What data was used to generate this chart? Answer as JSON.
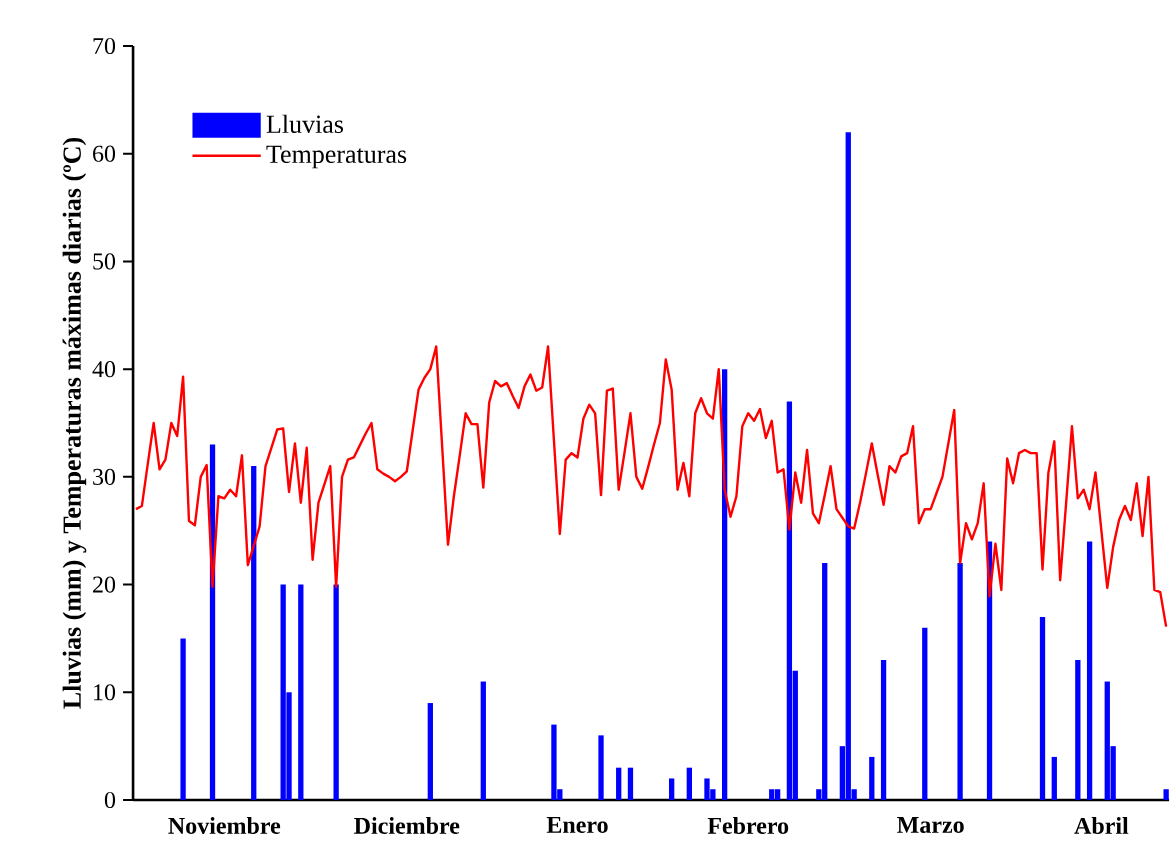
{
  "chart_data": {
    "type": "bar",
    "ylabel": "Lluvias (mm)  y Temperaturas máximas diarias (ºC)",
    "ylim": [
      0,
      70
    ],
    "yticks": [
      0,
      10,
      20,
      30,
      40,
      50,
      60,
      70
    ],
    "categories": [
      null,
      null,
      null,
      null,
      null,
      null,
      null,
      null,
      null,
      null,
      null,
      null,
      null,
      null,
      null,
      "Noviembre",
      null,
      null,
      null,
      null,
      null,
      null,
      null,
      null,
      null,
      null,
      null,
      null,
      null,
      null,
      null,
      null,
      null,
      null,
      null,
      null,
      null,
      null,
      null,
      null,
      null,
      null,
      null,
      null,
      null,
      null,
      "Diciembre",
      null,
      null,
      null,
      null,
      null,
      null,
      null,
      null,
      null,
      null,
      null,
      null,
      null,
      null,
      null,
      null,
      null,
      null,
      null,
      null,
      null,
      null,
      null,
      null,
      null,
      null,
      null,
      null,
      "Enero",
      null,
      null,
      null,
      null,
      null,
      null,
      null,
      null,
      null,
      null,
      null,
      null,
      null,
      null,
      null,
      null,
      null,
      null,
      null,
      null,
      null,
      null,
      null,
      null,
      null,
      null,
      null,
      null,
      "Febrero",
      null,
      null,
      null,
      null,
      null,
      null,
      null,
      null,
      null,
      null,
      null,
      null,
      null,
      null,
      null,
      null,
      null,
      null,
      null,
      null,
      null,
      null,
      null,
      null,
      null,
      null,
      null,
      null,
      null,
      null,
      "Marzo",
      null,
      null,
      null,
      null,
      null,
      null,
      null,
      null,
      null,
      null,
      null,
      null,
      null,
      null,
      null,
      null,
      null,
      null,
      null,
      null,
      null,
      null,
      null,
      null,
      null,
      null,
      null,
      null,
      "Abril",
      null,
      null,
      null,
      null,
      null,
      null,
      null,
      null,
      null,
      null,
      null
    ],
    "legend": "top left",
    "series": [
      {
        "name": "Lluvias",
        "color": "#0000ff",
        "values": [
          null,
          null,
          null,
          null,
          null,
          null,
          null,
          null,
          15,
          null,
          null,
          null,
          null,
          33,
          null,
          null,
          null,
          null,
          null,
          null,
          31,
          null,
          null,
          null,
          null,
          20,
          10,
          null,
          20,
          null,
          null,
          null,
          null,
          null,
          20,
          null,
          null,
          null,
          null,
          null,
          null,
          null,
          null,
          null,
          null,
          null,
          null,
          null,
          null,
          null,
          9,
          null,
          null,
          null,
          null,
          null,
          null,
          null,
          null,
          11,
          null,
          null,
          null,
          null,
          null,
          null,
          null,
          null,
          null,
          null,
          null,
          7,
          1,
          null,
          null,
          null,
          null,
          null,
          null,
          6,
          null,
          null,
          3,
          null,
          3,
          null,
          null,
          null,
          null,
          null,
          null,
          2,
          null,
          null,
          3,
          null,
          null,
          2,
          1,
          null,
          40,
          null,
          null,
          null,
          null,
          null,
          null,
          null,
          1,
          1,
          null,
          37,
          12,
          null,
          null,
          null,
          1,
          22,
          null,
          null,
          5,
          62,
          1,
          null,
          null,
          4,
          null,
          13,
          null,
          null,
          null,
          null,
          null,
          null,
          16,
          null,
          null,
          null,
          null,
          null,
          22,
          null,
          null,
          null,
          null,
          24,
          null,
          null,
          null,
          null,
          null,
          null,
          null,
          null,
          17,
          null,
          4,
          null,
          null,
          null,
          13,
          null,
          24,
          null,
          null,
          11,
          5,
          null,
          null,
          null,
          null,
          null,
          null,
          null,
          null,
          1
        ]
      },
      {
        "name": "Temperaturas",
        "type": "line",
        "color": "#ff0000",
        "values": [
          27,
          27.3,
          31.2,
          35,
          30.7,
          31.6,
          35,
          33.8,
          39.3,
          25.9,
          25.5,
          30,
          31.1,
          19.8,
          28.2,
          28,
          28.8,
          28.2,
          32,
          21.8,
          23.6,
          25.4,
          31,
          32.7,
          34.4,
          34.5,
          28.6,
          33.1,
          27.6,
          32.7,
          22.3,
          27.6,
          29.3,
          31,
          19.8,
          30,
          31.6,
          31.8,
          32.9,
          34,
          35,
          30.7,
          30.3,
          30,
          29.6,
          30,
          30.5,
          34.3,
          38.1,
          39.2,
          40,
          42.1,
          32.9,
          23.7,
          28.2,
          32,
          35.9,
          34.9,
          34.9,
          29,
          36.9,
          38.9,
          38.4,
          38.7,
          37.5,
          36.4,
          38.4,
          39.5,
          38,
          38.3,
          42.1,
          33.4,
          24.7,
          31.6,
          32.2,
          31.8,
          35.4,
          36.7,
          35.9,
          28.3,
          38,
          38.2,
          28.8,
          32.3,
          35.9,
          30,
          28.9,
          30.9,
          33,
          35,
          40.9,
          38.1,
          28.8,
          31.3,
          28.2,
          35.9,
          37.3,
          35.9,
          35.4,
          40,
          28.8,
          26.3,
          28.2,
          34.7,
          35.9,
          35.2,
          36.3,
          33.6,
          35.2,
          30.4,
          30.7,
          25.1,
          30.4,
          27.6,
          32.5,
          26.6,
          25.7,
          28.3,
          31,
          27,
          26.2,
          25.4,
          25.2,
          27.6,
          30.3,
          33.1,
          30.2,
          27.4,
          31,
          30.4,
          31.9,
          32.2,
          34.7,
          25.7,
          27,
          27,
          28.5,
          30,
          33.1,
          36.2,
          22,
          25.7,
          24.2,
          25.7,
          29.4,
          18.9,
          23.8,
          19.5,
          31.7,
          29.4,
          32.2,
          32.5,
          32.2,
          32.2,
          21.4,
          30.4,
          33.3,
          20.4,
          27.5,
          34.7,
          28,
          28.8,
          27,
          30.4,
          25,
          19.7,
          23.5,
          26,
          27.3,
          26,
          29.4,
          24.5,
          30,
          19.5,
          19.3,
          16.1
        ]
      }
    ]
  }
}
